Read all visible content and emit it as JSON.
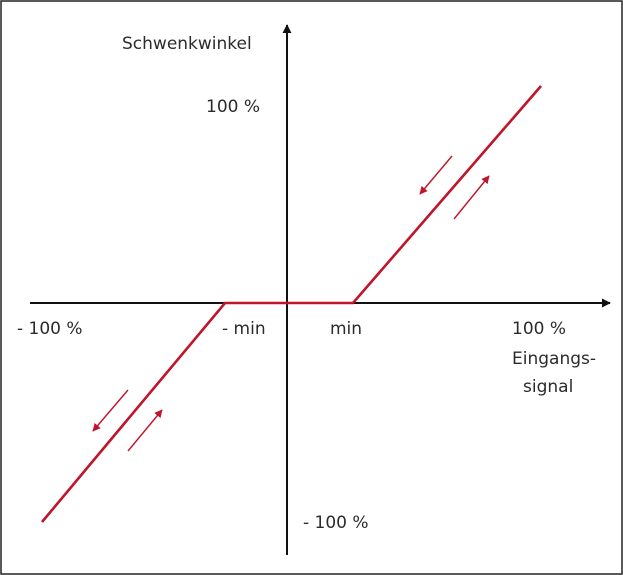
{
  "labels": {
    "y_axis_title": "Schwenkwinkel",
    "x_axis_title_line1": "Eingangs-",
    "x_axis_title_line2": "signal",
    "y_max": "100 %",
    "y_min": "- 100 %",
    "x_max": "100 %",
    "x_min": "- 100 %",
    "x_pos_min": "min",
    "x_neg_min": "- min"
  },
  "colors": {
    "curve": "#c0142a",
    "axis": "#111111",
    "frame": "#222222",
    "text": "#2b2b2b"
  }
}
